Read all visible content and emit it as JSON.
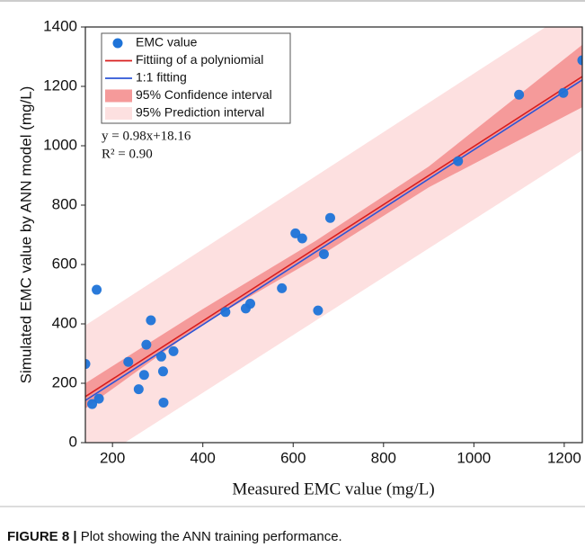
{
  "chart_data": {
    "type": "scatter",
    "xlabel": "Measured EMC value (mg/L)",
    "ylabel": "Simulated EMC value by ANN model (mg/L)",
    "xlim": [
      140,
      1240
    ],
    "ylim": [
      0,
      1400
    ],
    "xticks": [
      200,
      400,
      600,
      800,
      1000,
      1200
    ],
    "yticks": [
      0,
      200,
      400,
      600,
      800,
      1000,
      1200,
      1400
    ],
    "annotations": [
      "y = 0.98x+18.16",
      "R² = 0.90"
    ],
    "series": [
      {
        "name": "EMC value",
        "type": "points",
        "color": "#1e73d8",
        "x": [
          140,
          155,
          165,
          170,
          235,
          258,
          270,
          275,
          285,
          308,
          312,
          313,
          335,
          450,
          495,
          505,
          575,
          605,
          620,
          655,
          668,
          682,
          965,
          1100,
          1198,
          1240
        ],
        "values": [
          265,
          130,
          515,
          148,
          272,
          180,
          228,
          330,
          412,
          290,
          240,
          135,
          308,
          440,
          452,
          468,
          520,
          705,
          688,
          445,
          635,
          757,
          948,
          1172,
          1178,
          1288
        ]
      },
      {
        "name": "Fittiing of a polyniomial",
        "type": "line",
        "color": "#d81e1e",
        "x": [
          140,
          1240
        ],
        "values": [
          155,
          1233
        ]
      },
      {
        "name": "1:1 fitting",
        "type": "line",
        "color": "#2b55d6",
        "x": [
          140,
          1240
        ],
        "values": [
          142,
          1222
        ]
      },
      {
        "name": "95% Confidence interval",
        "type": "band",
        "color": "#f59a9a",
        "x": [
          140,
          400,
          650,
          900,
          1240
        ],
        "upper": [
          200,
          450,
          680,
          930,
          1340
        ],
        "lower": [
          115,
          400,
          620,
          860,
          1130
        ]
      },
      {
        "name": "95% Prediction interval",
        "type": "band",
        "color": "#fde0e0",
        "x": [
          140,
          1240
        ],
        "upper": [
          395,
          1480
        ],
        "lower": [
          -85,
          985
        ]
      }
    ]
  },
  "caption": {
    "label": "FIGURE 8 |",
    "text": "Plot showing the ANN training performance."
  }
}
